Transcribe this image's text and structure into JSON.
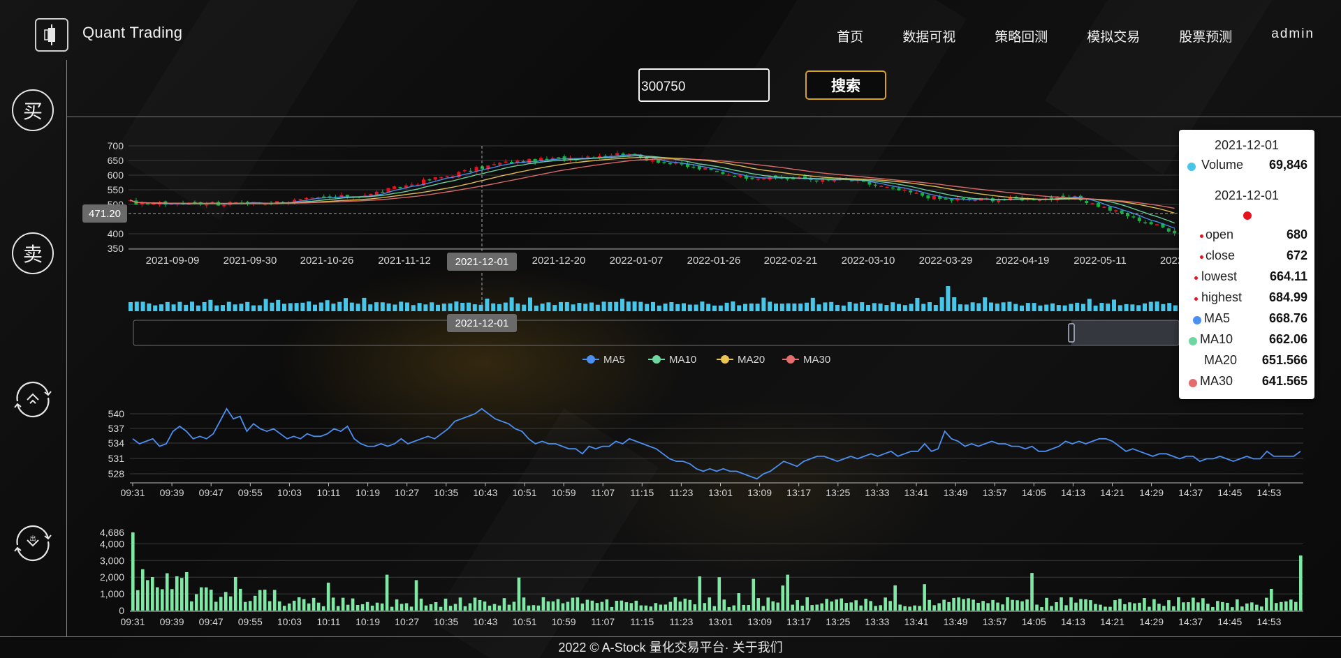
{
  "app": {
    "logo_text": "Quant Trading",
    "logo_icon": "candlestick-icon"
  },
  "nav": {
    "items": [
      "首页",
      "数据可视",
      "策略回测",
      "模拟交易",
      "股票预测"
    ],
    "user": "admin"
  },
  "sidebar": {
    "buy_label": "买",
    "sell_label": "卖",
    "icon_3": "transfer-in-icon",
    "icon_4": "transfer-out-icon"
  },
  "search": {
    "value": "300750",
    "button_label": "搜索"
  },
  "kline": {
    "y_ticks": [
      "700",
      "650",
      "600",
      "550",
      "500",
      "400",
      "350"
    ],
    "x_ticks": [
      "2021-09-09",
      "2021-09-30",
      "2021-10-26",
      "2021-11-12",
      "2021-12-01",
      "2021-12-20",
      "2022-01-07",
      "2022-01-26",
      "2022-02-21",
      "2022-03-10",
      "2022-03-29",
      "2022-04-19",
      "2022-05-11",
      "2022-"
    ],
    "cursor_price_label": "471.20",
    "cursor_date_label": "2021-12-01",
    "slider_date_label": "2021-12-01",
    "legend": [
      "MA5",
      "MA10",
      "MA20",
      "MA30"
    ],
    "colors": {
      "up": "#e6121e",
      "down": "#14b143",
      "ma5": "#4b8ff0",
      "ma10": "#6fd6a0",
      "ma20": "#e8c454",
      "ma30": "#e46e6e",
      "volume": "#48c6ea"
    }
  },
  "intraday": {
    "y_ticks": [
      "540",
      "537",
      "534",
      "531",
      "528"
    ],
    "x_ticks": [
      "09:31",
      "09:39",
      "09:47",
      "09:55",
      "10:03",
      "10:11",
      "10:19",
      "10:27",
      "10:35",
      "10:43",
      "10:51",
      "10:59",
      "11:07",
      "11:15",
      "11:23",
      "13:01",
      "13:09",
      "13:17",
      "13:25",
      "13:33",
      "13:41",
      "13:49",
      "13:57",
      "14:05",
      "14:13",
      "14:21",
      "14:29",
      "14:37",
      "14:45",
      "14:53"
    ],
    "line_color": "#4b8ff0"
  },
  "intraday_volume": {
    "y_ticks": [
      "4,686",
      "4,000",
      "3,000",
      "2,000",
      "1,000",
      "0"
    ],
    "x_ticks": [
      "09:31",
      "09:39",
      "09:47",
      "09:55",
      "10:03",
      "10:11",
      "10:19",
      "10:27",
      "10:35",
      "10:43",
      "10:51",
      "10:59",
      "11:07",
      "11:15",
      "11:23",
      "13:01",
      "13:09",
      "13:17",
      "13:25",
      "13:33",
      "13:41",
      "13:49",
      "13:57",
      "14:05",
      "14:13",
      "14:21",
      "14:29",
      "14:37",
      "14:45",
      "14:53"
    ],
    "bar_color": "#7ee8a4"
  },
  "tooltip": {
    "volume_date": "2021-12-01",
    "volume_label": "Volume",
    "volume_value": "69,846",
    "kline_date": "2021-12-01",
    "rows": [
      {
        "label": "open",
        "value": "680"
      },
      {
        "label": "close",
        "value": "672"
      },
      {
        "label": "lowest",
        "value": "664.11"
      },
      {
        "label": "highest",
        "value": "684.99"
      },
      {
        "label": "MA5",
        "value": "668.76"
      },
      {
        "label": "MA10",
        "value": "662.06"
      },
      {
        "label": "MA20",
        "value": "651.566"
      },
      {
        "label": "MA30",
        "value": "641.565"
      }
    ]
  },
  "footer": {
    "text": "2022 © A-Stock 量化交易平台· 关于我们"
  }
}
